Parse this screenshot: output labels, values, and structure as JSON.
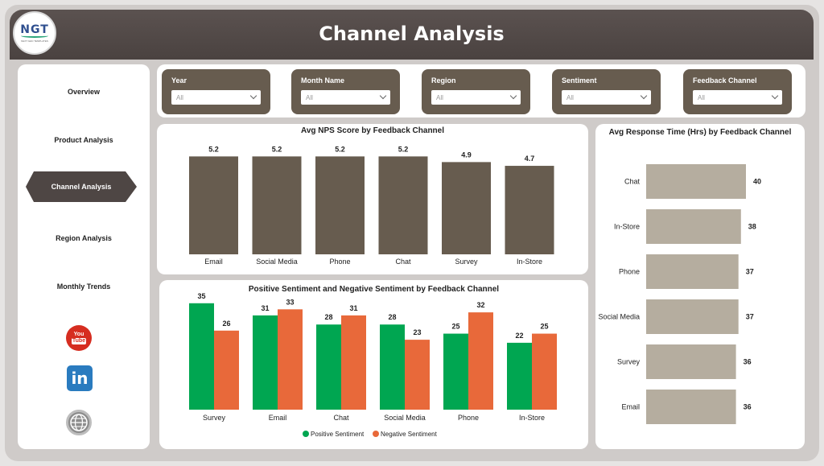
{
  "header": {
    "title": "Channel Analysis",
    "logo_text": "NGT",
    "logo_subtext": "NEXT GEN TEMPLATES"
  },
  "sidebar": {
    "items": [
      {
        "label": "Overview",
        "active": false
      },
      {
        "label": "Product Analysis",
        "active": false
      },
      {
        "label": "Channel Analysis",
        "active": true
      },
      {
        "label": "Region Analysis",
        "active": false
      },
      {
        "label": "Monthly Trends",
        "active": false
      }
    ],
    "social": [
      {
        "icon": "youtube-icon",
        "label": "You Tube"
      },
      {
        "icon": "linkedin-icon",
        "label": "in"
      },
      {
        "icon": "globe-icon"
      }
    ]
  },
  "filters": [
    {
      "label": "Year",
      "value": "All"
    },
    {
      "label": "Month Name",
      "value": "All"
    },
    {
      "label": "Region",
      "value": "All"
    },
    {
      "label": "Sentiment",
      "value": "All"
    },
    {
      "label": "Feedback Channel",
      "value": "All"
    }
  ],
  "colors": {
    "bar_dark": "#675c4f",
    "bar_light": "#b5ad9f",
    "positive": "#00a651",
    "negative": "#e8693a",
    "header": "#4e4644"
  },
  "chart_data": [
    {
      "type": "bar",
      "title": "Avg NPS Score by Feedback Channel",
      "categories": [
        "Email",
        "Social Media",
        "Phone",
        "Chat",
        "Survey",
        "In-Store"
      ],
      "values": [
        5.2,
        5.2,
        5.2,
        5.2,
        4.9,
        4.7
      ],
      "ylim": [
        0,
        5.6
      ]
    },
    {
      "type": "bar",
      "orientation": "horizontal",
      "title": "Avg Response Time (Hrs) by Feedback Channel",
      "categories": [
        "Chat",
        "In-Store",
        "Phone",
        "Social Media",
        "Survey",
        "Email"
      ],
      "values": [
        40,
        38,
        37,
        37,
        36,
        36
      ],
      "xlim": [
        0,
        40
      ]
    },
    {
      "type": "bar",
      "title": "Positive Sentiment and Negative Sentiment by Feedback Channel",
      "categories": [
        "Survey",
        "Email",
        "Chat",
        "Social Media",
        "Phone",
        "In-Store"
      ],
      "series": [
        {
          "name": "Positive Sentiment",
          "values": [
            35,
            31,
            28,
            28,
            25,
            22
          ]
        },
        {
          "name": "Negative Sentiment",
          "values": [
            26,
            33,
            31,
            23,
            32,
            25
          ]
        }
      ],
      "ylim": [
        0,
        36
      ],
      "legend": "bottom-center"
    }
  ]
}
